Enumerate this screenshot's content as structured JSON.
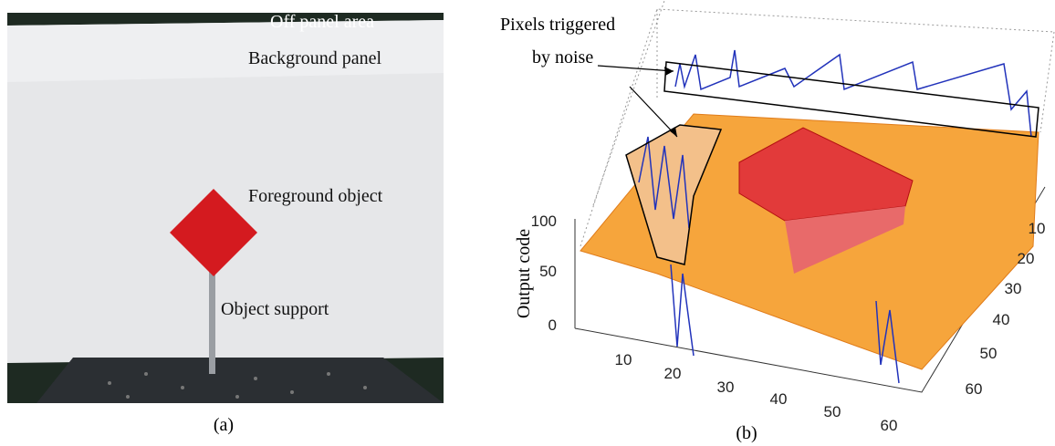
{
  "panel_a": {
    "labels": [
      "Off panel area",
      "Background panel",
      "Foreground object",
      "Object support"
    ],
    "caption": "(a)"
  },
  "panel_b": {
    "annotation": [
      "Pixels triggered",
      "by noise"
    ],
    "z_label": "Output code",
    "z_ticks": [
      0,
      50,
      100
    ],
    "x_ticks": [
      10,
      20,
      30,
      40,
      50,
      60
    ],
    "y_ticks": [
      10,
      20,
      30,
      40,
      50,
      60
    ],
    "caption": "(b)"
  }
}
